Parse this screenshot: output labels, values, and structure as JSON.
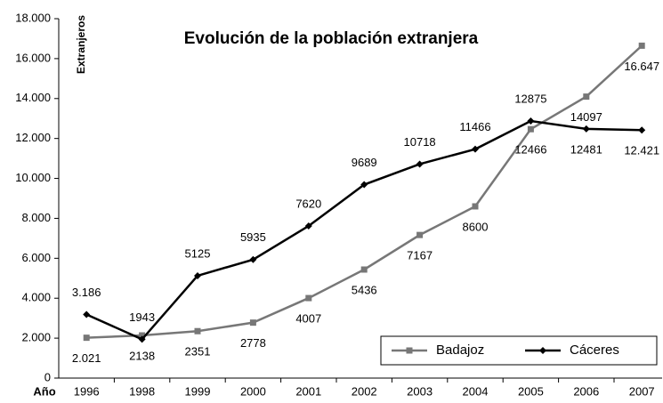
{
  "chart_data": {
    "type": "line",
    "title": "Evolución de la población extranjera",
    "y_label": "Extranjeros",
    "x_label": "Año",
    "categories": [
      "1996",
      "1998",
      "1999",
      "2000",
      "2001",
      "2002",
      "2003",
      "2004",
      "2005",
      "2006",
      "2007"
    ],
    "series": [
      {
        "name": "Badajoz",
        "color": "#777777",
        "marker": "square",
        "values": [
          2021,
          2138,
          2351,
          2778,
          4007,
          5436,
          7167,
          8600,
          12466,
          14097,
          16647
        ],
        "value_labels": [
          "2.021",
          "2138",
          "2351",
          "2778",
          "4007",
          "5436",
          "7167",
          "8600",
          "12466",
          "14097",
          "16.647"
        ]
      },
      {
        "name": "Cáceres",
        "color": "#000000",
        "marker": "diamond",
        "values": [
          3186,
          1943,
          5125,
          5935,
          7620,
          9689,
          10718,
          11466,
          12875,
          12481,
          12421
        ],
        "value_labels": [
          "3.186",
          "1943",
          "5125",
          "5935",
          "7620",
          "9689",
          "10718",
          "11466",
          "12875",
          "12481",
          "12.421"
        ]
      }
    ],
    "ylim": [
      0,
      18000
    ],
    "yticks": [
      0,
      {
        "value": 2000,
        "label": "2.000"
      },
      {
        "value": 4000,
        "label": "4.000"
      },
      {
        "value": 6000,
        "label": "6.000"
      },
      {
        "value": 8000,
        "label": "8.000"
      },
      {
        "value": 10000,
        "label": "10.000"
      },
      {
        "value": 12000,
        "label": "12.000"
      },
      {
        "value": 14000,
        "label": "14.000"
      },
      {
        "value": 16000,
        "label": "16.000"
      },
      {
        "value": 18000,
        "label": "18.000"
      }
    ],
    "grid": false,
    "legend": "lower right"
  }
}
